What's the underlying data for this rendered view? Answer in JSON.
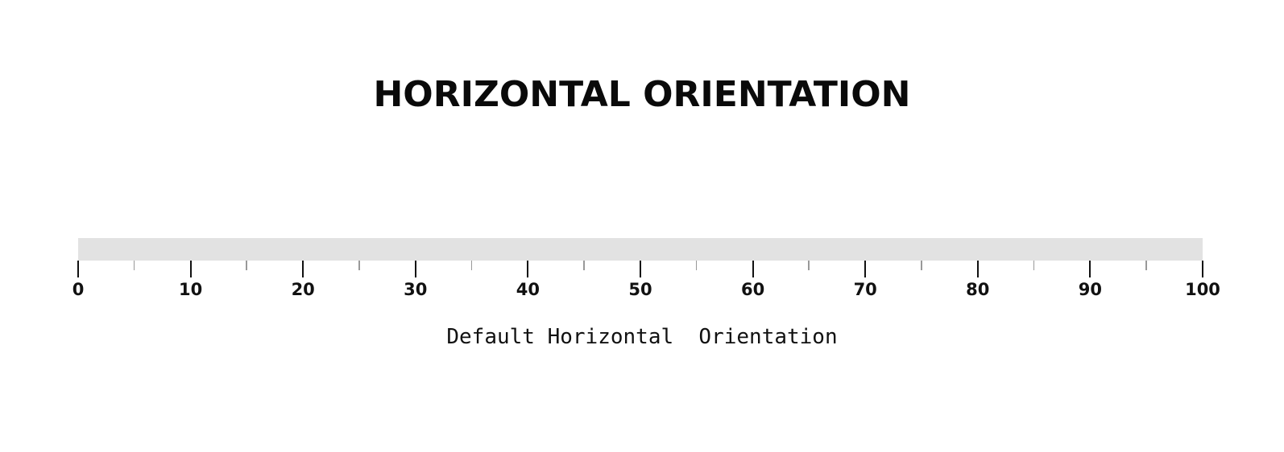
{
  "title": "HORIZONTAL ORIENTATION",
  "meter": {
    "value": 0,
    "min": 0,
    "max": 100,
    "track_color": "#e2e2e2",
    "major_step": 10,
    "minor_step": 5,
    "labels": [
      "0",
      "10",
      "20",
      "30",
      "40",
      "50",
      "60",
      "70",
      "80",
      "90",
      "100"
    ]
  },
  "caption": "Default Horizontal  Orientation"
}
